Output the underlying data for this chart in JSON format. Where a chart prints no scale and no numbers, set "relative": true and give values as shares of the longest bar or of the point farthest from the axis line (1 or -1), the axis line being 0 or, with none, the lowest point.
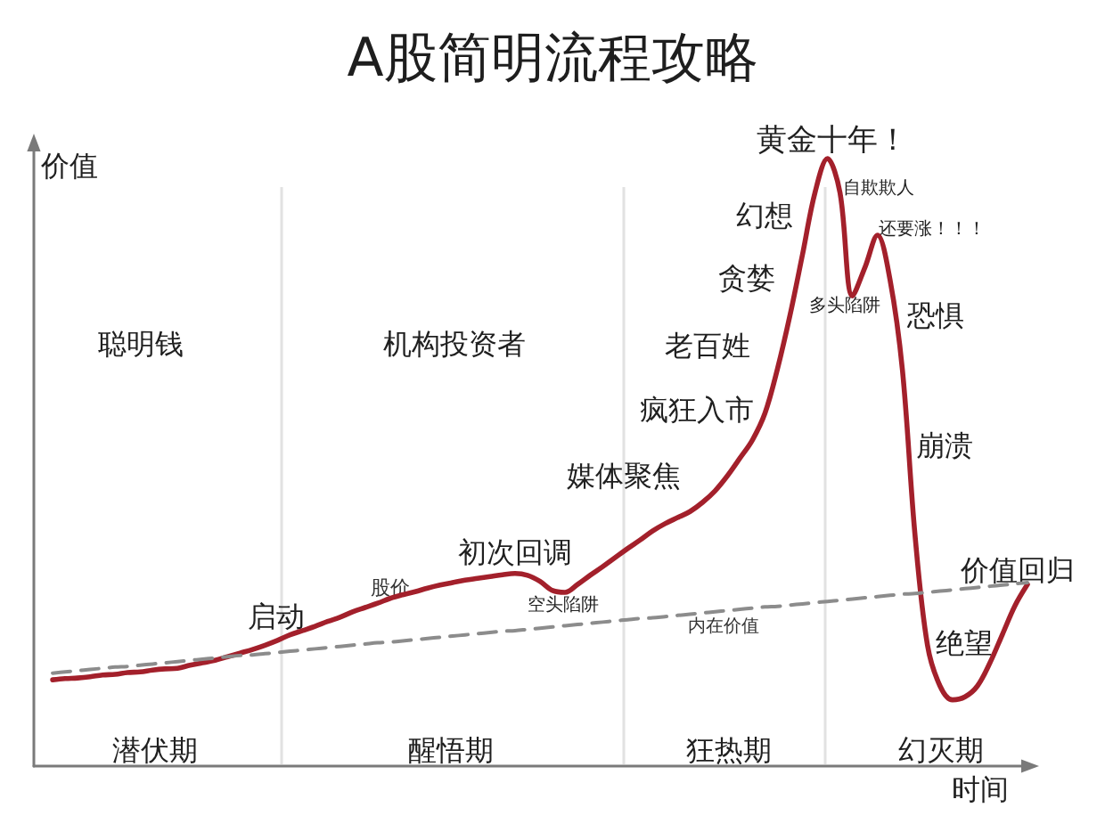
{
  "chart_data": {
    "type": "line",
    "title": "A股简明流程攻略",
    "xlabel": "时间",
    "ylabel": "价值",
    "relative": true,
    "grid": false,
    "legend": false,
    "marker": "none",
    "line_style": "solid",
    "categories": [
      null,
      null,
      null,
      null,
      null,
      null,
      null,
      null,
      null,
      null,
      null,
      null,
      null,
      null,
      null,
      null,
      null,
      null,
      null,
      null,
      null,
      null,
      null,
      null,
      null,
      null,
      null,
      null,
      null,
      null,
      null,
      null,
      null,
      null,
      null,
      null,
      null,
      null,
      null,
      null,
      null,
      null,
      null,
      null,
      null,
      null,
      null,
      null,
      null,
      null,
      null,
      null,
      null,
      null,
      null,
      null,
      null,
      null,
      null,
      null,
      null,
      null,
      null,
      null,
      null,
      null,
      null,
      null,
      null,
      null,
      null,
      null,
      null,
      null,
      null,
      null,
      null,
      null,
      null,
      null
    ],
    "series": [
      {
        "name": "股价",
        "color": "#a3202b",
        "values": [
          null,
          0.142,
          0.144,
          0.145,
          0.147,
          0.15,
          0.151,
          0.154,
          0.155,
          0.158,
          0.16,
          0.161,
          0.166,
          0.17,
          0.174,
          0.18,
          0.186,
          0.192,
          0.199,
          0.207,
          0.216,
          0.223,
          0.23,
          0.238,
          0.245,
          0.254,
          0.261,
          0.268,
          0.276,
          0.282,
          0.287,
          0.293,
          0.298,
          0.302,
          0.306,
          0.309,
          0.312,
          0.315,
          0.317,
          0.314,
          0.304,
          0.289,
          0.286,
          0.299,
          0.314,
          0.328,
          0.343,
          0.358,
          0.372,
          0.387,
          0.399,
          0.409,
          0.419,
          0.434,
          0.453,
          0.478,
          0.507,
          0.537,
          0.581,
          0.654,
          0.742,
          0.842,
          0.944,
          1,
          0.944,
          0.774,
          0.821,
          0.874,
          0.801,
          0.651,
          0.381,
          0.199,
          0.132,
          0.109,
          0.114,
          0.132,
          0.17,
          0.217,
          0.264,
          0.299
        ]
      },
      {
        "name": "内在价值",
        "color": "#8c8c8c",
        "line_style": "dashed",
        "values": [
          null,
          0.153,
          0.155,
          0.157,
          0.159,
          0.161,
          0.163,
          0.164,
          0.166,
          0.168,
          0.17,
          0.172,
          0.174,
          0.176,
          0.178,
          0.18,
          0.182,
          0.183,
          0.185,
          0.187,
          0.189,
          0.191,
          0.193,
          0.195,
          0.197,
          0.199,
          0.201,
          0.203,
          0.204,
          0.206,
          0.208,
          0.21,
          0.212,
          0.214,
          0.216,
          0.218,
          0.22,
          0.222,
          0.223,
          0.225,
          0.227,
          0.229,
          0.231,
          0.233,
          0.235,
          0.237,
          0.239,
          0.241,
          0.243,
          0.244,
          0.246,
          0.248,
          0.25,
          0.252,
          0.254,
          0.256,
          0.258,
          0.26,
          0.262,
          0.263,
          0.265,
          0.267,
          0.269,
          0.271,
          0.273,
          0.275,
          0.277,
          0.279,
          0.281,
          0.283,
          0.284,
          0.286,
          0.288,
          0.29,
          0.292,
          0.294,
          0.296,
          0.298,
          0.3,
          0.302
        ]
      }
    ],
    "annotations": [
      "聪明钱",
      "机构投资者",
      "老百姓",
      "启动",
      "初次回调",
      "空头陷阱",
      "媒体聚焦",
      "疯狂入市",
      "贪婪",
      "幻想",
      "黄金十年！",
      "自欺欺人",
      "多头陷阱",
      "还要涨！！！",
      "恐惧",
      "崩溃",
      "价值回归",
      "绝望",
      "潜伏期",
      "醒悟期",
      "狂热期",
      "幻灭期"
    ]
  }
}
